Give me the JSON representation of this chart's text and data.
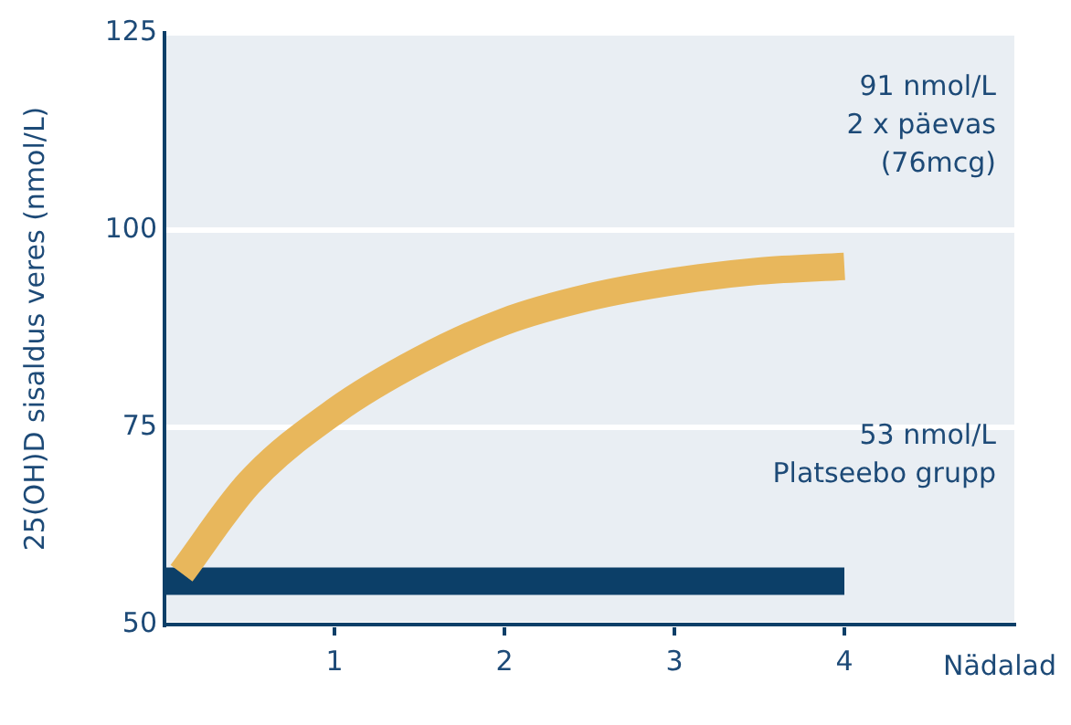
{
  "chart_data": {
    "type": "line",
    "xlabel": "Nädalad",
    "ylabel": "25(OH)D sisaldus veres (nmol/L)",
    "xlim": [
      0,
      5
    ],
    "xticks": [
      1,
      2,
      3,
      4
    ],
    "ylim": [
      50,
      125
    ],
    "yticks": [
      50,
      75,
      100,
      125
    ],
    "grid": "y",
    "legend": false,
    "marker": "none",
    "series": [
      {
        "color": "#e8b75c",
        "x": [
          0.1,
          0.5,
          1,
          1.5,
          2,
          2.5,
          3,
          3.5,
          4
        ],
        "values": [
          56.5,
          68,
          77,
          83.5,
          88.4,
          91.5,
          93.5,
          94.8,
          95.4
        ]
      },
      {
        "color": "#0c3f68",
        "x": [
          0,
          4
        ],
        "values": [
          55.5,
          55.5
        ]
      }
    ],
    "annotations": [
      "91 nmol/L\n2 x päevas\n(76mcg)",
      "53 nmol/L\nPlatseebo grupp"
    ]
  }
}
